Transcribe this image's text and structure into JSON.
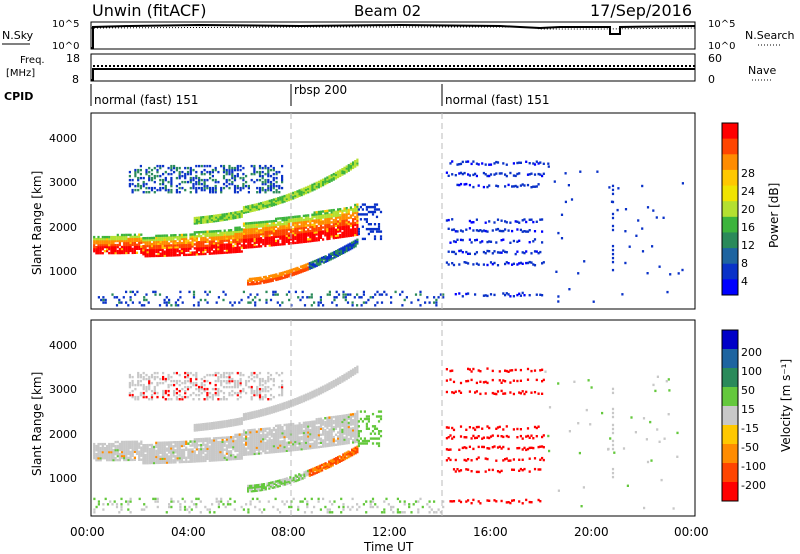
{
  "header": {
    "title": "Unwin (fitACF)",
    "beam": "Beam 02",
    "date": "17/Sep/2016"
  },
  "noise_panel": {
    "left_label": "N.Sky",
    "right_label": "N.Search",
    "ticks_left": [
      "10^5",
      "10^0"
    ],
    "ticks_right": [
      "10^5",
      "10^0"
    ]
  },
  "freq_panel": {
    "left_label_1": "Freq.",
    "left_label_2": "[MHz]",
    "right_label": "Nave",
    "ticks_left": [
      "18",
      "8"
    ],
    "ticks_right": [
      "60",
      "0"
    ]
  },
  "cpid_panel": {
    "label": "CPID",
    "segments": [
      {
        "text": "normal (fast) 151",
        "start": 0,
        "end": 8
      },
      {
        "text": "rbsp 200",
        "start": 8,
        "end": 14
      },
      {
        "text": "normal (fast) 151",
        "start": 14,
        "end": 24
      }
    ]
  },
  "axes": {
    "ylabel": "Slant Range [km]",
    "yticks": [
      "1000",
      "2000",
      "3000",
      "4000"
    ],
    "xlabel": "Time UT",
    "xticks": [
      "00:00",
      "04:00",
      "08:00",
      "12:00",
      "16:00",
      "20:00",
      "00:00"
    ]
  },
  "colorbars": {
    "power": {
      "label": "Power [dB]",
      "ticks": [
        "28",
        "24",
        "20",
        "16",
        "12",
        "8",
        "4"
      ],
      "colors": [
        "#ff0000",
        "#ff4500",
        "#ff8c00",
        "#ffc800",
        "#f0e400",
        "#b4e030",
        "#3cb43c",
        "#2a8a5a",
        "#1e64a0",
        "#0a32c8",
        "#0000ff"
      ]
    },
    "velocity": {
      "label": "Velocity [m s⁻¹]",
      "ticks": [
        "200",
        "100",
        "50",
        "15",
        "-15",
        "-50",
        "-100",
        "-200"
      ],
      "colors": [
        "#0000c8",
        "#1e64a0",
        "#2a8a5a",
        "#64c83c",
        "#c8c8c8",
        "#ffc800",
        "#ff8c00",
        "#ff4500",
        "#ff0000"
      ]
    }
  },
  "chart_data": [
    {
      "type": "heatmap",
      "title": "",
      "xlabel": "Time UT",
      "ylabel": "Slant Range [km]",
      "xlim": [
        0,
        24
      ],
      "ylim": [
        200,
        4600
      ],
      "colorbar": "Power [dB]",
      "features": [
        {
          "name": "",
          "t0": 0,
          "t1": 10.6,
          "r0": 1500,
          "r1": 3200,
          "power_db": 28
        },
        {
          "name": "",
          "t0": 6.2,
          "t1": 10.6,
          "r0": 800,
          "r1": 1900,
          "power_db": 24
        },
        {
          "name": "",
          "t0": 1.5,
          "t1": 7.5,
          "r0": 2800,
          "r1": 3500,
          "power_db": 8
        },
        {
          "name": "",
          "t0": 14.0,
          "t1": 18.0,
          "r0": 500,
          "r1": 3500,
          "power_db": 8
        }
      ]
    },
    {
      "type": "heatmap",
      "title": "",
      "xlabel": "Time UT",
      "ylabel": "Slant Range [km]",
      "xlim": [
        0,
        24
      ],
      "ylim": [
        200,
        4600
      ],
      "colorbar": "Velocity [m s⁻¹]",
      "features": [
        {
          "name": "",
          "t0": 0,
          "t1": 10.6,
          "r0": 1500,
          "r1": 3200,
          "velocity_ms": 0
        },
        {
          "name": "",
          "t0": 6.2,
          "t1": 10.6,
          "r0": 700,
          "r1": 1900,
          "velocity_ms": 30
        },
        {
          "name": "",
          "t0": 14.0,
          "t1": 18.0,
          "r0": 500,
          "r1": 3500,
          "velocity_ms": -150
        }
      ]
    }
  ]
}
